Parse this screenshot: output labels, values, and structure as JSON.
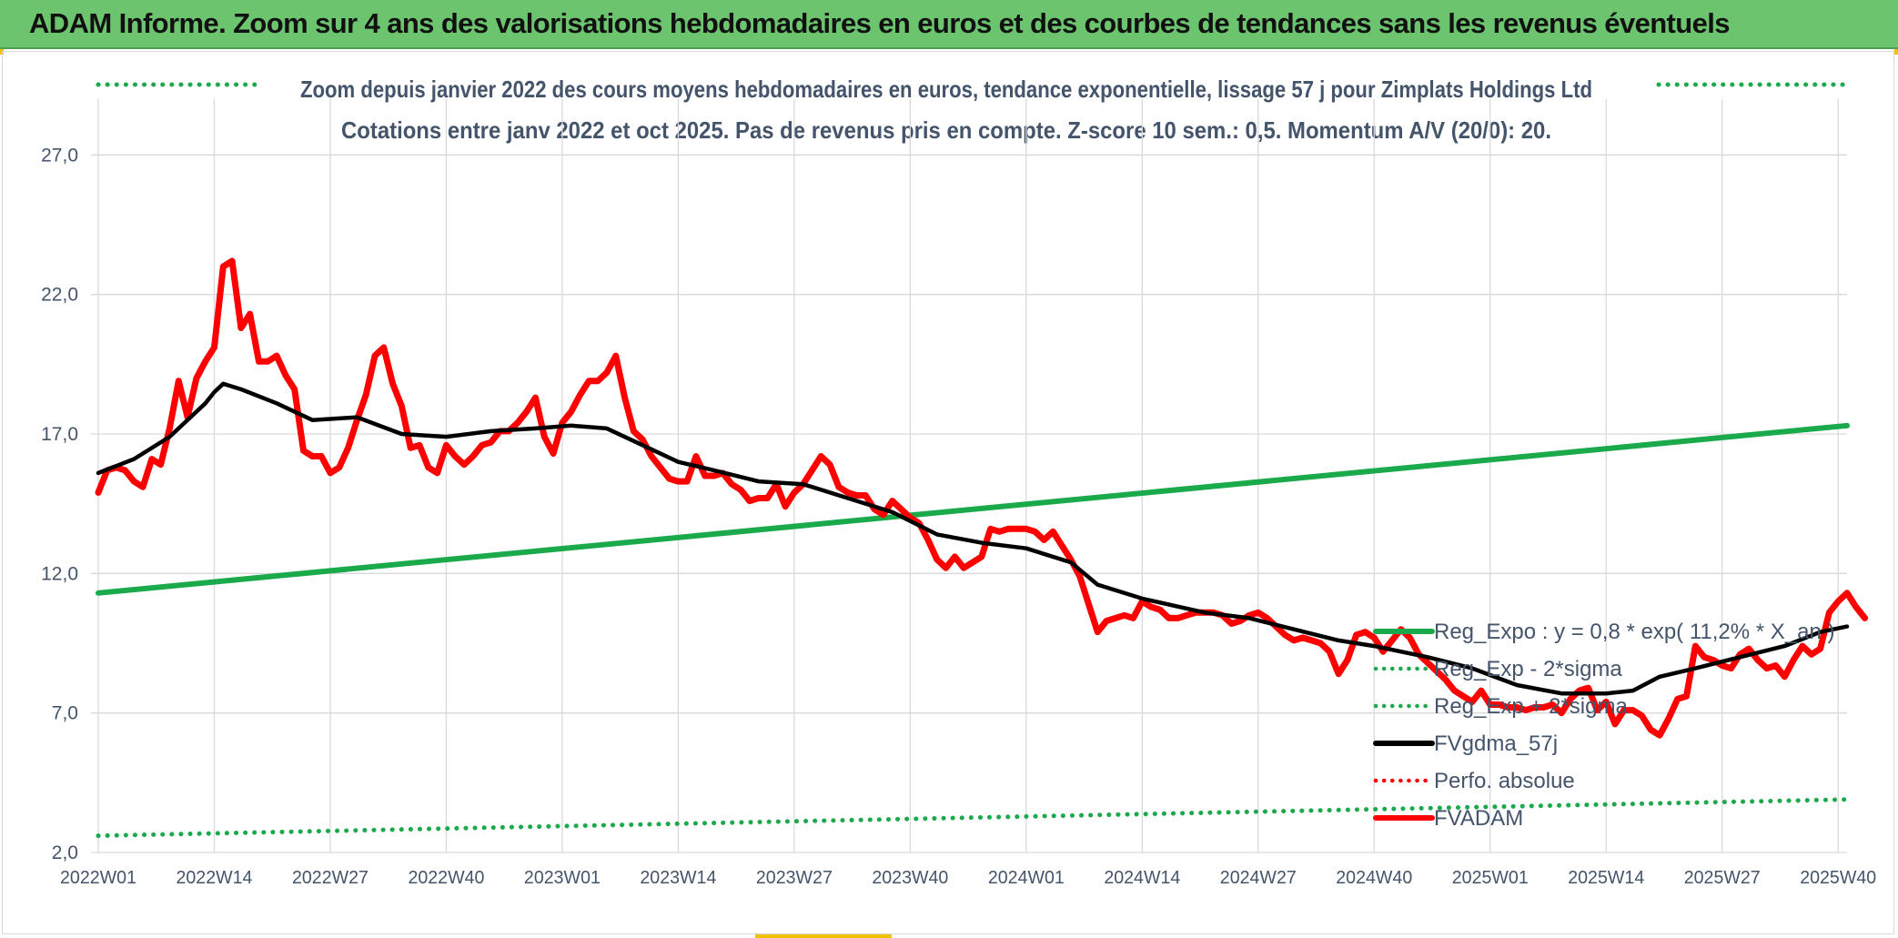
{
  "header": {
    "title": "ADAM Informe. Zoom sur 4 ans des valorisations hebdomadaires en euros et des courbes de tendances sans les revenus éventuels"
  },
  "colors": {
    "banner": "#6cc46f",
    "reg_expo": "#1aaa4b",
    "fvgdma": "#000000",
    "perfo": "#ff0000",
    "fvadam": "#ff0000"
  },
  "chart_data": {
    "type": "line",
    "title": "Zoom depuis janvier 2022 des cours moyens hebdomadaires en euros, tendance exponentielle, lissage 57 j pour Zimplats Holdings Ltd",
    "subtitle": "Cotations entre janv 2022 et oct 2025. Pas de revenus pris en compte. Z-score 10 sem.: 0,5. Momentum A/V (20/0): 20.",
    "xlabel": "",
    "ylabel": "",
    "ylim": [
      2,
      29
    ],
    "yticks": [
      "2,0",
      "7,0",
      "12,0",
      "17,0",
      "22,0",
      "27,0"
    ],
    "ytick_values": [
      2,
      7,
      12,
      17,
      22,
      27
    ],
    "grid": true,
    "x_range": [
      1,
      197
    ],
    "xtick_labels": [
      "2022W01",
      "2022W14",
      "2022W27",
      "2022W40",
      "2023W01",
      "2023W14",
      "2023W27",
      "2023W40",
      "2024W01",
      "2024W14",
      "2024W27",
      "2024W40",
      "2025W01",
      "2025W14",
      "2025W27",
      "2025W40"
    ],
    "xtick_positions": [
      1,
      14,
      27,
      40,
      53,
      66,
      79,
      92,
      105,
      118,
      131,
      144,
      157,
      170,
      183,
      196
    ],
    "legend": {
      "position": "bottom-right",
      "entries": [
        {
          "name": "Reg_Expo : y = 0,8 * exp( 11,2% *  X_an )",
          "style": "solid",
          "color": "#1aaa4b"
        },
        {
          "name": "Reg_Exp - 2*sigma",
          "style": "dotted",
          "color": "#1aaa4b"
        },
        {
          "name": "Reg_Exp + 2*sigma",
          "style": "dotted",
          "color": "#1aaa4b"
        },
        {
          "name": "FVgdma_57j",
          "style": "solid",
          "color": "#000000"
        },
        {
          "name": "Perfo. absolue",
          "style": "dotted",
          "color": "#ff0000"
        },
        {
          "name": "FVADAM",
          "style": "solid",
          "color": "#ff0000"
        }
      ]
    },
    "series": [
      {
        "name": "Reg_Expo",
        "style": "solid",
        "points": [
          [
            1,
            11.3
          ],
          [
            197,
            17.3
          ]
        ]
      },
      {
        "name": "Reg_Exp - 2*sigma",
        "style": "dotted",
        "points": [
          [
            1,
            2.6
          ],
          [
            197,
            3.9
          ]
        ]
      },
      {
        "name": "Reg_Exp + 2*sigma",
        "style": "dotted",
        "points": [
          [
            1,
            29.2
          ],
          [
            197,
            29.2
          ]
        ]
      },
      {
        "name": "FVgdma_57j",
        "style": "solid",
        "points": [
          [
            1,
            15.6
          ],
          [
            5,
            16.1
          ],
          [
            9,
            16.9
          ],
          [
            13,
            18.1
          ],
          [
            14,
            18.5
          ],
          [
            15,
            18.8
          ],
          [
            17,
            18.6
          ],
          [
            21,
            18.1
          ],
          [
            25,
            17.5
          ],
          [
            30,
            17.6
          ],
          [
            35,
            17.0
          ],
          [
            40,
            16.9
          ],
          [
            45,
            17.1
          ],
          [
            50,
            17.2
          ],
          [
            54,
            17.3
          ],
          [
            58,
            17.2
          ],
          [
            62,
            16.6
          ],
          [
            66,
            16.0
          ],
          [
            70,
            15.7
          ],
          [
            75,
            15.3
          ],
          [
            80,
            15.2
          ],
          [
            85,
            14.7
          ],
          [
            90,
            14.2
          ],
          [
            95,
            13.4
          ],
          [
            100,
            13.1
          ],
          [
            105,
            12.9
          ],
          [
            110,
            12.4
          ],
          [
            113,
            11.6
          ],
          [
            118,
            11.1
          ],
          [
            125,
            10.6
          ],
          [
            130,
            10.4
          ],
          [
            135,
            10.0
          ],
          [
            140,
            9.6
          ],
          [
            144,
            9.4
          ],
          [
            150,
            9.0
          ],
          [
            155,
            8.6
          ],
          [
            160,
            8.0
          ],
          [
            165,
            7.7
          ],
          [
            170,
            7.7
          ],
          [
            173,
            7.8
          ],
          [
            176,
            8.3
          ],
          [
            180,
            8.6
          ],
          [
            185,
            9.0
          ],
          [
            190,
            9.4
          ],
          [
            194,
            9.9
          ],
          [
            197,
            10.1
          ]
        ]
      },
      {
        "name": "Perfo. absolue",
        "style": "dotted",
        "points": []
      },
      {
        "name": "FVADAM",
        "style": "solid",
        "points": [
          [
            1,
            14.9
          ],
          [
            2,
            15.7
          ],
          [
            3,
            15.8
          ],
          [
            4,
            15.7
          ],
          [
            5,
            15.3
          ],
          [
            6,
            15.1
          ],
          [
            7,
            16.1
          ],
          [
            8,
            15.9
          ],
          [
            9,
            17.2
          ],
          [
            10,
            18.9
          ],
          [
            11,
            17.6
          ],
          [
            12,
            19.0
          ],
          [
            13,
            19.6
          ],
          [
            14,
            20.1
          ],
          [
            15,
            23.0
          ],
          [
            16,
            23.2
          ],
          [
            17,
            20.8
          ],
          [
            18,
            21.3
          ],
          [
            19,
            19.6
          ],
          [
            20,
            19.6
          ],
          [
            21,
            19.8
          ],
          [
            22,
            19.1
          ],
          [
            23,
            18.6
          ],
          [
            24,
            16.4
          ],
          [
            25,
            16.2
          ],
          [
            26,
            16.2
          ],
          [
            27,
            15.6
          ],
          [
            28,
            15.8
          ],
          [
            29,
            16.5
          ],
          [
            30,
            17.5
          ],
          [
            31,
            18.4
          ],
          [
            32,
            19.8
          ],
          [
            33,
            20.1
          ],
          [
            34,
            18.8
          ],
          [
            35,
            18.0
          ],
          [
            36,
            16.5
          ],
          [
            37,
            16.6
          ],
          [
            38,
            15.8
          ],
          [
            39,
            15.6
          ],
          [
            40,
            16.6
          ],
          [
            41,
            16.2
          ],
          [
            42,
            15.9
          ],
          [
            43,
            16.2
          ],
          [
            44,
            16.6
          ],
          [
            45,
            16.7
          ],
          [
            46,
            17.1
          ],
          [
            47,
            17.1
          ],
          [
            48,
            17.4
          ],
          [
            49,
            17.8
          ],
          [
            50,
            18.3
          ],
          [
            51,
            16.9
          ],
          [
            52,
            16.3
          ],
          [
            53,
            17.4
          ],
          [
            54,
            17.8
          ],
          [
            55,
            18.4
          ],
          [
            56,
            18.9
          ],
          [
            57,
            18.9
          ],
          [
            58,
            19.2
          ],
          [
            59,
            19.8
          ],
          [
            60,
            18.3
          ],
          [
            61,
            17.1
          ],
          [
            62,
            16.8
          ],
          [
            63,
            16.2
          ],
          [
            64,
            15.8
          ],
          [
            65,
            15.4
          ],
          [
            66,
            15.3
          ],
          [
            67,
            15.3
          ],
          [
            68,
            16.2
          ],
          [
            69,
            15.5
          ],
          [
            70,
            15.5
          ],
          [
            71,
            15.6
          ],
          [
            72,
            15.2
          ],
          [
            73,
            15.0
          ],
          [
            74,
            14.6
          ],
          [
            75,
            14.7
          ],
          [
            76,
            14.7
          ],
          [
            77,
            15.2
          ],
          [
            78,
            14.4
          ],
          [
            79,
            14.9
          ],
          [
            80,
            15.2
          ],
          [
            81,
            15.7
          ],
          [
            82,
            16.2
          ],
          [
            83,
            15.9
          ],
          [
            84,
            15.1
          ],
          [
            85,
            14.9
          ],
          [
            86,
            14.8
          ],
          [
            87,
            14.8
          ],
          [
            88,
            14.3
          ],
          [
            89,
            14.1
          ],
          [
            90,
            14.6
          ],
          [
            91,
            14.3
          ],
          [
            92,
            14.0
          ],
          [
            93,
            13.8
          ],
          [
            94,
            13.2
          ],
          [
            95,
            12.5
          ],
          [
            96,
            12.2
          ],
          [
            97,
            12.6
          ],
          [
            98,
            12.2
          ],
          [
            99,
            12.4
          ],
          [
            100,
            12.6
          ],
          [
            101,
            13.6
          ],
          [
            102,
            13.5
          ],
          [
            103,
            13.6
          ],
          [
            104,
            13.6
          ],
          [
            105,
            13.6
          ],
          [
            106,
            13.5
          ],
          [
            107,
            13.2
          ],
          [
            108,
            13.5
          ],
          [
            109,
            13.0
          ],
          [
            110,
            12.5
          ],
          [
            111,
            11.9
          ],
          [
            112,
            10.9
          ],
          [
            113,
            9.9
          ],
          [
            114,
            10.3
          ],
          [
            115,
            10.4
          ],
          [
            116,
            10.5
          ],
          [
            117,
            10.4
          ],
          [
            118,
            11.0
          ],
          [
            119,
            10.8
          ],
          [
            120,
            10.7
          ],
          [
            121,
            10.4
          ],
          [
            122,
            10.4
          ],
          [
            123,
            10.5
          ],
          [
            124,
            10.6
          ],
          [
            125,
            10.6
          ],
          [
            126,
            10.6
          ],
          [
            127,
            10.5
          ],
          [
            128,
            10.2
          ],
          [
            129,
            10.3
          ],
          [
            130,
            10.5
          ],
          [
            131,
            10.6
          ],
          [
            132,
            10.4
          ],
          [
            133,
            10.1
          ],
          [
            134,
            9.8
          ],
          [
            135,
            9.6
          ],
          [
            136,
            9.7
          ],
          [
            137,
            9.6
          ],
          [
            138,
            9.5
          ],
          [
            139,
            9.2
          ],
          [
            140,
            8.4
          ],
          [
            141,
            8.9
          ],
          [
            142,
            9.8
          ],
          [
            143,
            9.9
          ],
          [
            144,
            9.7
          ],
          [
            145,
            9.2
          ],
          [
            146,
            9.6
          ],
          [
            147,
            10.0
          ],
          [
            148,
            9.7
          ],
          [
            149,
            9.1
          ],
          [
            150,
            8.8
          ],
          [
            151,
            8.5
          ],
          [
            152,
            8.2
          ],
          [
            153,
            7.8
          ],
          [
            154,
            7.6
          ],
          [
            155,
            7.4
          ],
          [
            156,
            7.8
          ],
          [
            157,
            7.3
          ],
          [
            158,
            7.3
          ],
          [
            159,
            7.2
          ],
          [
            160,
            7.2
          ],
          [
            161,
            7.1
          ],
          [
            162,
            7.2
          ],
          [
            163,
            7.2
          ],
          [
            164,
            7.3
          ],
          [
            165,
            7.0
          ],
          [
            166,
            7.5
          ],
          [
            167,
            7.8
          ],
          [
            168,
            7.9
          ],
          [
            169,
            7.1
          ],
          [
            170,
            7.4
          ],
          [
            171,
            6.6
          ],
          [
            172,
            7.1
          ],
          [
            173,
            7.1
          ],
          [
            174,
            6.9
          ],
          [
            175,
            6.4
          ],
          [
            176,
            6.2
          ],
          [
            177,
            6.8
          ],
          [
            178,
            7.5
          ],
          [
            179,
            7.6
          ],
          [
            180,
            9.4
          ],
          [
            181,
            9.0
          ],
          [
            182,
            8.9
          ],
          [
            183,
            8.7
          ],
          [
            184,
            8.6
          ],
          [
            185,
            9.1
          ],
          [
            186,
            9.3
          ],
          [
            187,
            8.9
          ],
          [
            188,
            8.6
          ],
          [
            189,
            8.7
          ],
          [
            190,
            8.3
          ],
          [
            191,
            8.9
          ],
          [
            192,
            9.4
          ],
          [
            193,
            9.1
          ],
          [
            194,
            9.3
          ],
          [
            195,
            10.6
          ],
          [
            196,
            11.0
          ],
          [
            197,
            11.3
          ],
          [
            198,
            10.8
          ],
          [
            199,
            10.4
          ]
        ]
      }
    ]
  }
}
